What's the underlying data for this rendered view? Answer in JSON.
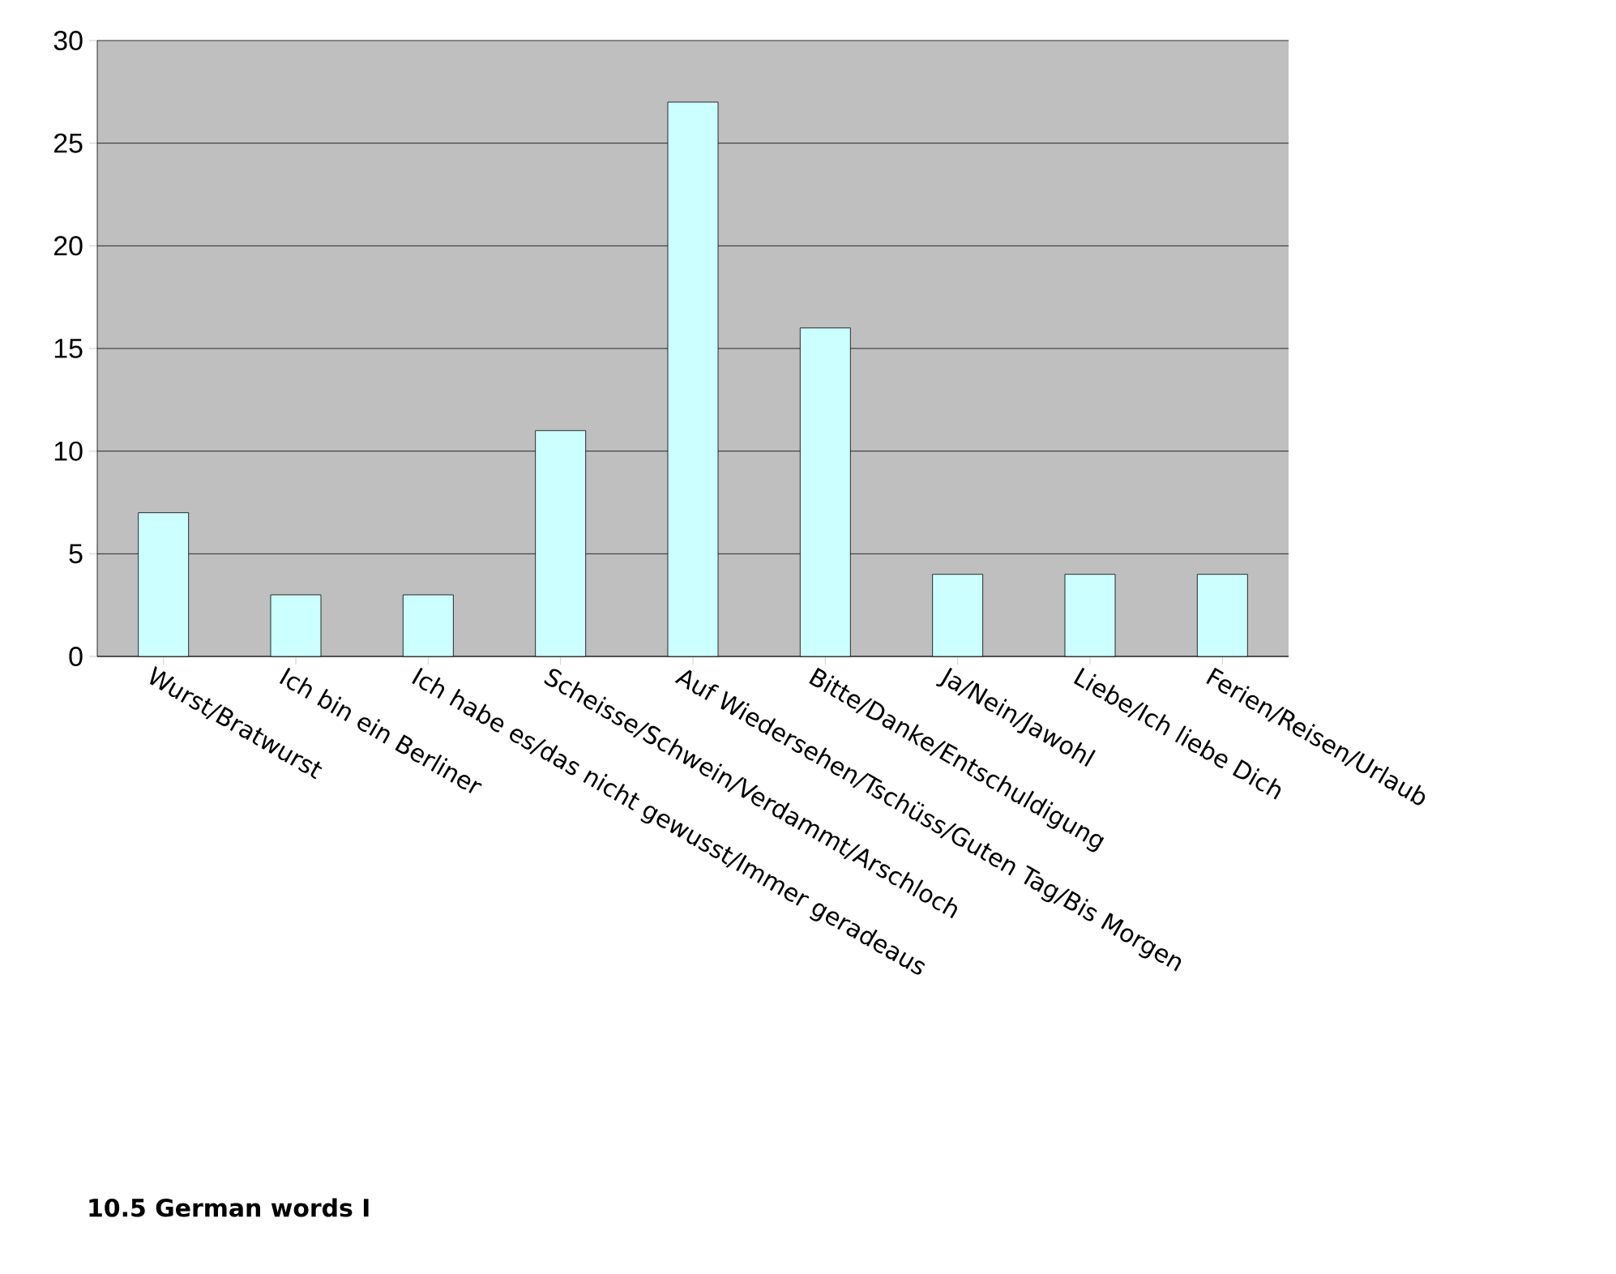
{
  "chart_data": {
    "type": "bar",
    "title": "10.5 German words I",
    "categories": [
      "Wurst/Bratwurst",
      "Ich bin ein Berliner",
      "Ich habe es/das nicht gewusst/Immer geradeaus",
      "Scheisse/Schwein/Verdammt/Arschloch",
      "Auf Wiedersehen/Tschüss/Guten Tag/Bis Morgen",
      "Bitte/Danke/Entschuldigung",
      "Ja/Nein/Jawohl",
      "Liebe/Ich liebe Dich",
      "Ferien/Reisen/Urlaub"
    ],
    "values": [
      7,
      3,
      3,
      11,
      27,
      16,
      4,
      4,
      4
    ],
    "color": "#ccffff",
    "ylim": [
      0,
      30
    ],
    "yticks": [
      0,
      5,
      10,
      15,
      20,
      25,
      30
    ],
    "grid": "y"
  }
}
